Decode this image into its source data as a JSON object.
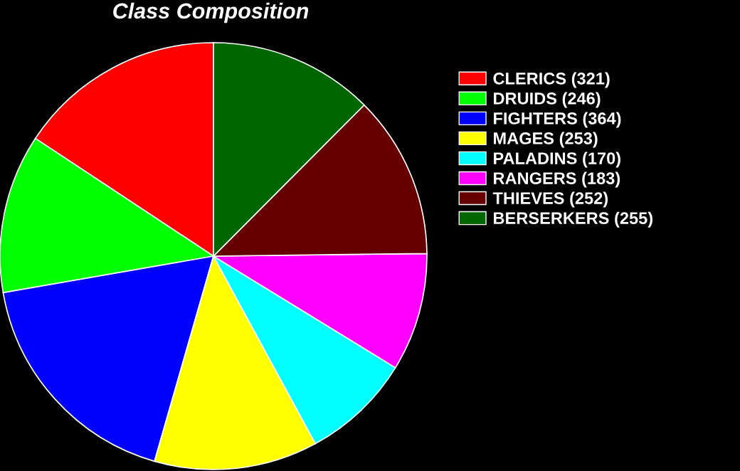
{
  "chart_data": {
    "type": "pie",
    "title": "Class Composition",
    "categories": [
      "CLERICS (321)",
      "DRUIDS (246)",
      "FIGHTERS (364)",
      "MAGES (253)",
      "PALADINS (170)",
      "RANGERS (183)",
      "THIEVES (252)",
      "BERSERKERS (255)"
    ],
    "values": [
      321,
      246,
      364,
      253,
      170,
      183,
      252,
      255
    ],
    "colors": [
      "#ff0000",
      "#00ff00",
      "#0000ff",
      "#ffff00",
      "#00ffff",
      "#ff00ff",
      "#660000",
      "#006600"
    ],
    "legend": "right"
  }
}
